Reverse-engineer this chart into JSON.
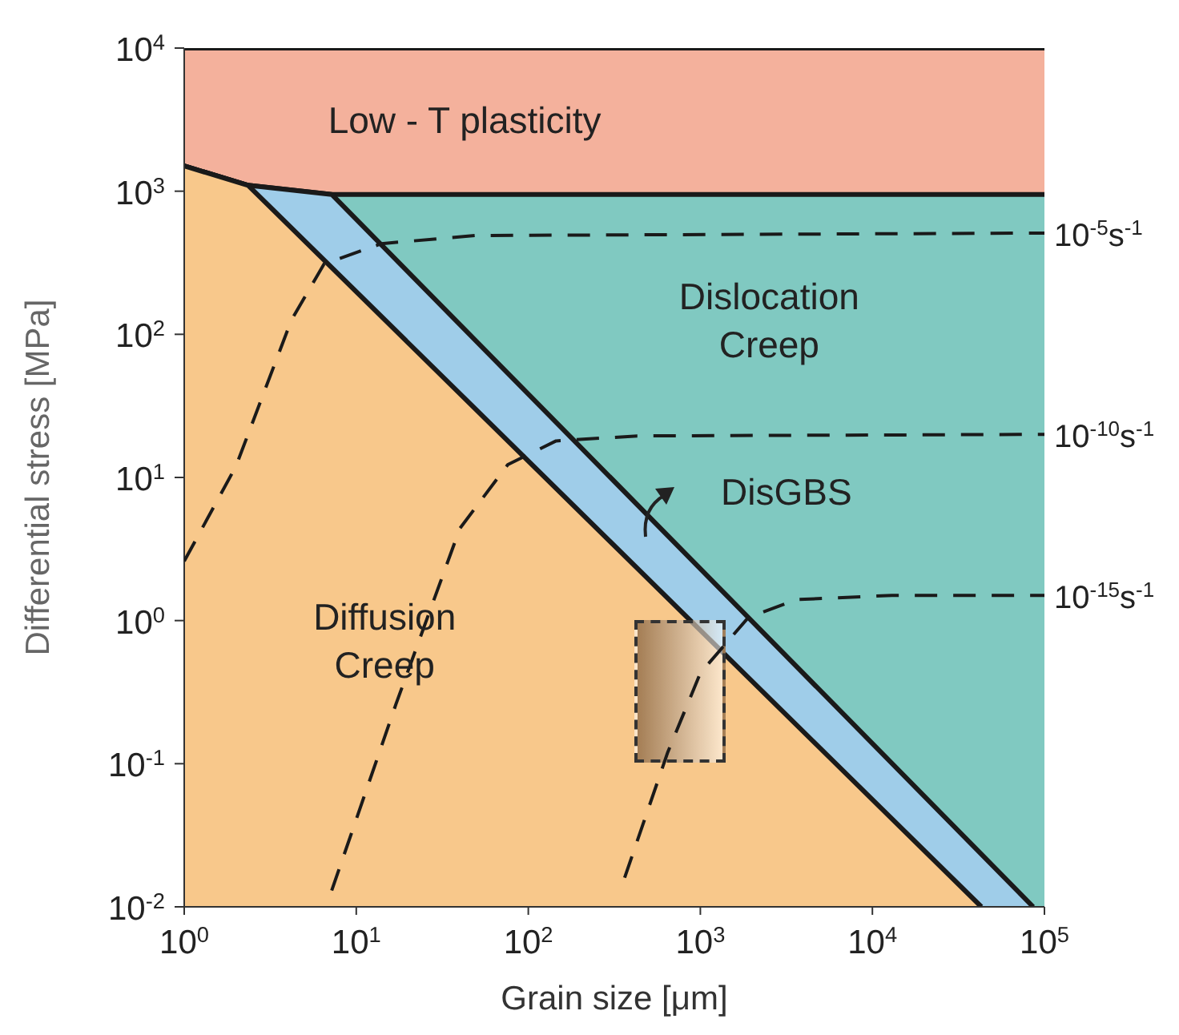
{
  "chart_data": {
    "type": "line",
    "xlabel": "Grain size [μm]",
    "ylabel": "Differential stress [MPa]",
    "log": "xy",
    "xlim": [
      1,
      100000
    ],
    "ylim": [
      0.01,
      10000
    ],
    "xticks": [
      {
        "value": 1,
        "label": "10$^{0}$"
      },
      {
        "value": 10,
        "label": "10$^{1}$"
      },
      {
        "value": 100,
        "label": "10$^{2}$"
      },
      {
        "value": 1000,
        "label": "10$^{3}$"
      },
      {
        "value": 10000,
        "label": "10$^{4}$"
      },
      {
        "value": 100000,
        "label": "10$^{5}$"
      }
    ],
    "yticks": [
      {
        "value": 0.01,
        "label": "10$^{-2}$"
      },
      {
        "value": 0.1,
        "label": "10$^{-1}$"
      },
      {
        "value": 1,
        "label": "10$^{0}$"
      },
      {
        "value": 10,
        "label": "10$^{1}$"
      },
      {
        "value": 100,
        "label": "10$^{2}$"
      },
      {
        "value": 1000,
        "label": "10$^{3}$"
      },
      {
        "value": 10000,
        "label": "10$^{4}$"
      }
    ],
    "series": [
      {
        "type": "area",
        "color": "#f4b19c",
        "x": [
          1,
          100000
        ],
        "values": [
          10000,
          10000
        ]
      },
      {
        "type": "area",
        "color": "#80c9c1",
        "x": [
          1,
          2.35,
          7.2,
          100000
        ],
        "values": [
          1500,
          1100,
          950,
          950
        ]
      },
      {
        "type": "area",
        "color": "#9fcde9",
        "x": [
          1,
          2.35,
          7.2,
          86000
        ],
        "values": [
          1500,
          1100,
          950,
          0.01
        ]
      },
      {
        "type": "area",
        "color": "#f8c88b",
        "x": [
          1,
          2.35,
          43000
        ],
        "values": [
          1500,
          1100,
          0.01
        ]
      },
      {
        "name": "10$^{-5}$s$^{-1}$",
        "color": "#1a1a1a",
        "line_style": "dashed",
        "x": [
          1,
          2,
          4.2,
          6.5,
          14,
          49,
          100000
        ],
        "values": [
          2.6,
          12,
          126,
          310,
          430,
          490,
          510
        ]
      },
      {
        "name": "10$^{-10}$s$^{-1}$",
        "color": "#1a1a1a",
        "line_style": "dashed",
        "x": [
          7.2,
          17,
          40,
          76,
          145,
          430,
          100000
        ],
        "values": [
          0.013,
          0.26,
          4.4,
          12.3,
          18,
          19.5,
          20
        ]
      },
      {
        "name": "10$^{-15}$s$^{-1}$",
        "color": "#1a1a1a",
        "line_style": "dashed",
        "x": [
          363,
          646,
          1000,
          1900,
          3600,
          13000,
          100000
        ],
        "values": [
          0.016,
          0.12,
          0.43,
          1.05,
          1.4,
          1.5,
          1.5
        ]
      }
    ],
    "annotations": [
      "Low - T plasticity",
      "Dislocation\nCreep",
      "DisGBS",
      "Diffusion\nCreep"
    ]
  }
}
